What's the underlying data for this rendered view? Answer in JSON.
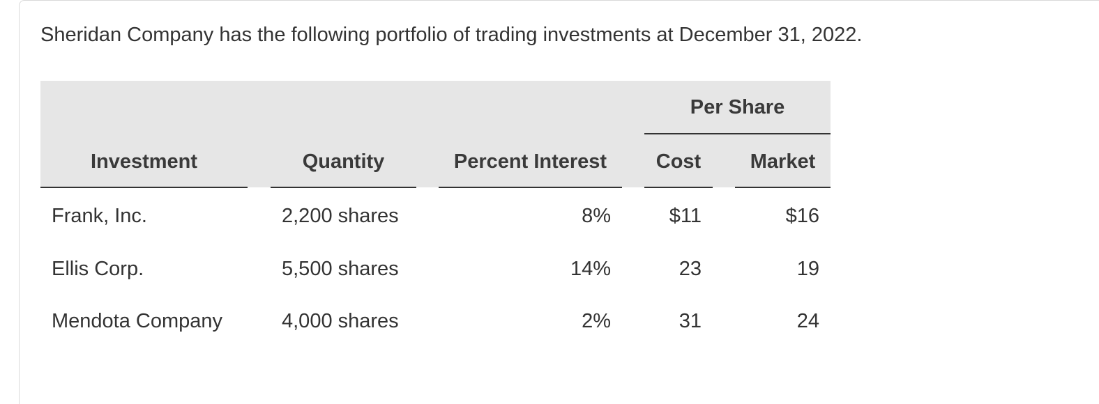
{
  "intro": "Sheridan Company has the following portfolio of trading investments at December 31, 2022.",
  "table": {
    "group_header": "Per Share",
    "columns": [
      "Investment",
      "Quantity",
      "Percent Interest",
      "Cost",
      "Market"
    ],
    "rows": [
      [
        "Frank, Inc.",
        "2,200 shares",
        "8%",
        "$11",
        "$16"
      ],
      [
        "Ellis Corp.",
        "5,500 shares",
        "14%",
        "23",
        "19"
      ],
      [
        "Mendota Company",
        "4,000 shares",
        "2%",
        "31",
        "24"
      ]
    ]
  }
}
